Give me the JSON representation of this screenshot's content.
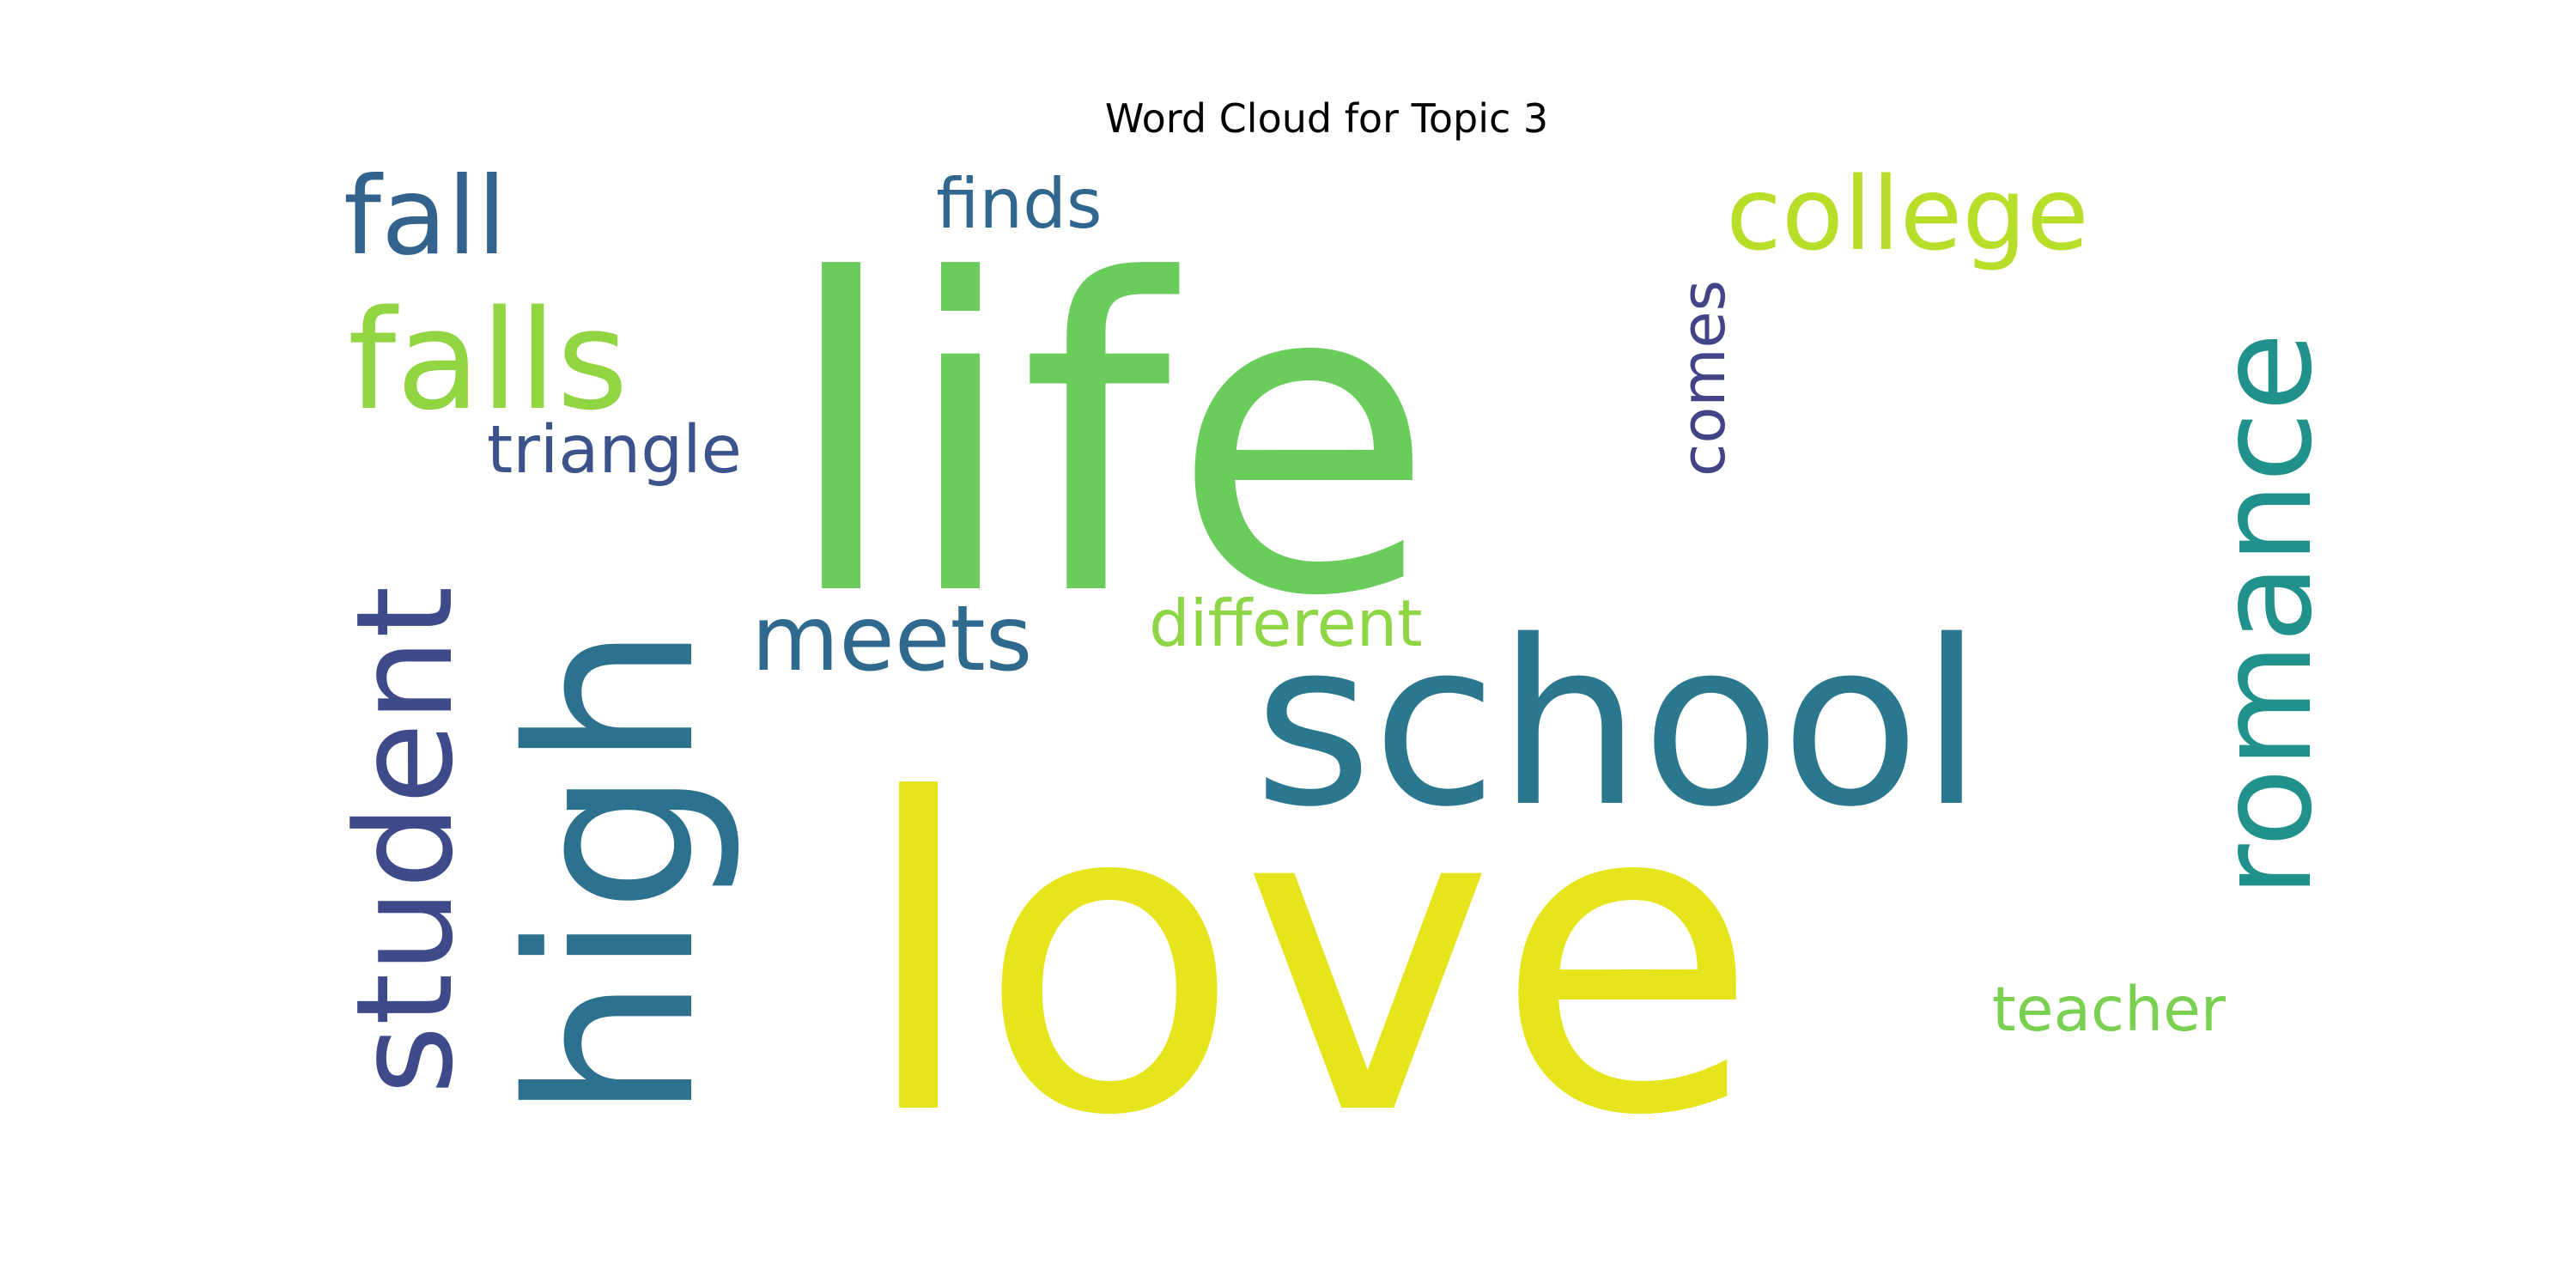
{
  "chart_data": {
    "type": "wordcloud",
    "title": "Word Cloud for Topic 3",
    "words": [
      {
        "text": "love",
        "weight": 1.0,
        "orientation": "horizontal",
        "color": "#e6e51c"
      },
      {
        "text": "life",
        "weight": 0.98,
        "orientation": "horizontal",
        "color": "#6acd5b"
      },
      {
        "text": "school",
        "weight": 0.55,
        "orientation": "horizontal",
        "color": "#2b788e"
      },
      {
        "text": "high",
        "weight": 0.53,
        "orientation": "vertical",
        "color": "#2c728e"
      },
      {
        "text": "falls",
        "weight": 0.3,
        "orientation": "horizontal",
        "color": "#91d542"
      },
      {
        "text": "romance",
        "weight": 0.3,
        "orientation": "vertical",
        "color": "#21918c"
      },
      {
        "text": "student",
        "weight": 0.3,
        "orientation": "vertical",
        "color": "#3e4a89"
      },
      {
        "text": "fall",
        "weight": 0.2,
        "orientation": "horizontal",
        "color": "#33638d"
      },
      {
        "text": "college",
        "weight": 0.2,
        "orientation": "horizontal",
        "color": "#b8de29"
      },
      {
        "text": "meets",
        "weight": 0.18,
        "orientation": "horizontal",
        "color": "#30698e"
      },
      {
        "text": "triangle",
        "weight": 0.14,
        "orientation": "horizontal",
        "color": "#3b528b"
      },
      {
        "text": "finds",
        "weight": 0.14,
        "orientation": "horizontal",
        "color": "#31668e"
      },
      {
        "text": "different",
        "weight": 0.14,
        "orientation": "horizontal",
        "color": "#8ed645"
      },
      {
        "text": "teacher",
        "weight": 0.13,
        "orientation": "horizontal",
        "color": "#7ad151"
      },
      {
        "text": "comes",
        "weight": 0.12,
        "orientation": "vertical",
        "color": "#414487"
      }
    ]
  }
}
